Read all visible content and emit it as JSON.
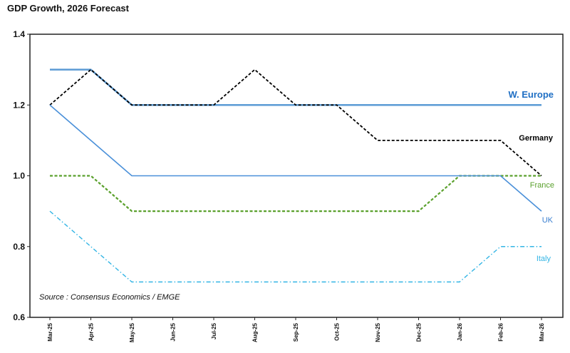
{
  "title": "GDP Growth, 2026 Forecast",
  "source": "Source : Consensus Economics / EMGE",
  "chart_data": {
    "type": "line",
    "title": "GDP Growth, 2026 Forecast",
    "x": [
      "Mar-25",
      "Apr-25",
      "May-25",
      "Jun-25",
      "Jul-25",
      "Aug-25",
      "Sep-25",
      "Oct-25",
      "Nov-25",
      "Dec-25",
      "Jan-26",
      "Feb-26",
      "Mar-26"
    ],
    "ylim": [
      0.6,
      1.4
    ],
    "yticks": [
      "0.6",
      "0.8",
      "1.0",
      "1.2",
      "1.4"
    ],
    "grid": false,
    "series": [
      {
        "name": "W. Europe",
        "color": "#5b9bd5",
        "style": "solid",
        "width": 2.5,
        "label_color": "#1f6fc4",
        "label_weight": "bold",
        "label_size": 13,
        "values": [
          1.3,
          1.3,
          1.2,
          1.2,
          1.2,
          1.2,
          1.2,
          1.2,
          1.2,
          1.2,
          1.2,
          1.2,
          1.2
        ]
      },
      {
        "name": "Germany",
        "color": "#000000",
        "style": "dashed",
        "width": 1.8,
        "label_color": "#000000",
        "label_weight": "bold",
        "label_size": 11,
        "values": [
          1.2,
          1.3,
          1.2,
          1.2,
          1.2,
          1.3,
          1.2,
          1.2,
          1.1,
          1.1,
          1.1,
          1.1,
          1.0
        ]
      },
      {
        "name": "France",
        "color": "#5aa02c",
        "style": "dashed",
        "width": 2.2,
        "label_color": "#5aa02c",
        "label_weight": "normal",
        "label_size": 11,
        "values": [
          1.0,
          1.0,
          0.9,
          0.9,
          0.9,
          0.9,
          0.9,
          0.9,
          0.9,
          0.9,
          1.0,
          1.0,
          1.0
        ]
      },
      {
        "name": "UK",
        "color": "#4a90d9",
        "style": "solid",
        "width": 1.6,
        "label_color": "#3a7fd0",
        "label_weight": "normal",
        "label_size": 11,
        "values": [
          1.2,
          1.1,
          1.0,
          1.0,
          1.0,
          1.0,
          1.0,
          1.0,
          1.0,
          1.0,
          1.0,
          1.0,
          0.9
        ]
      },
      {
        "name": "Italy",
        "color": "#33b5e5",
        "style": "dashdot",
        "width": 1.4,
        "label_color": "#33b5e5",
        "label_weight": "normal",
        "label_size": 11,
        "values": [
          0.9,
          0.8,
          0.7,
          0.7,
          0.7,
          0.7,
          0.7,
          0.7,
          0.7,
          0.7,
          0.7,
          0.8,
          0.8
        ]
      }
    ]
  }
}
